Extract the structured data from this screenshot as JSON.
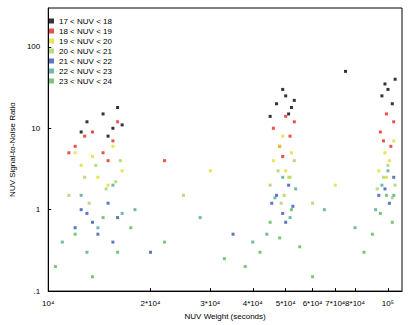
{
  "chart_data": {
    "type": "scatter",
    "x_label": "NUV Weight (seconds)",
    "y_label": "NUV Signal-to-Noise Ratio",
    "log": true,
    "grid": false,
    "legend": "upper left",
    "marker": "square",
    "xlim": [
      10000,
      110000
    ],
    "xticks": [
      {
        "value": 10000,
        "label": "10⁴"
      },
      {
        "value": 20000,
        "label": "2*10⁴"
      },
      {
        "value": 30000,
        "label": "3*10⁴"
      },
      {
        "value": 40000,
        "label": "4*10⁴"
      },
      {
        "value": 50000,
        "label": "5*10⁴"
      },
      {
        "value": 60000,
        "label": "6*10⁴"
      },
      {
        "value": 70000,
        "label": "7*10⁴"
      },
      {
        "value": 80000,
        "label": "8*10⁴"
      },
      {
        "value": 100000,
        "label": "10⁵"
      }
    ],
    "ylim": [
      0.1,
      300
    ],
    "yticks": [
      {
        "value": 0.1,
        "label": ".1"
      },
      1,
      10,
      100
    ],
    "series": [
      {
        "name": "17 < NUV < 18",
        "color": "#000000",
        "x": [
          13000,
          14500,
          15500,
          16000,
          15000,
          16500,
          12500,
          47000,
          50000,
          52000,
          49000,
          51000,
          45000,
          53000,
          96000,
          100000,
          103000,
          98000,
          105000,
          75000
        ],
        "values": [
          12,
          15,
          10,
          18,
          8,
          11,
          9,
          20,
          25,
          18,
          30,
          15,
          14,
          22,
          25,
          30,
          20,
          35,
          40,
          50
        ]
      },
      {
        "name": "18 < NUV < 19",
        "color": "#e8231e",
        "x": [
          12000,
          13500,
          14500,
          15500,
          16000,
          15000,
          12800,
          11500,
          46000,
          48000,
          50000,
          51500,
          53000,
          49000,
          95000,
          99000,
          102000,
          104000,
          97000,
          22000
        ],
        "values": [
          6,
          9,
          5,
          7,
          12,
          4,
          8,
          5,
          10,
          6,
          14,
          8,
          12,
          4.5,
          9,
          15,
          6,
          12,
          7,
          4
        ]
      },
      {
        "name": "19 < NUV < 20",
        "color": "#e3dc2a",
        "x": [
          12500,
          13500,
          14000,
          15500,
          16500,
          15000,
          12000,
          30000,
          46000,
          48000,
          50000,
          52000,
          49000,
          51000,
          94000,
          98000,
          101000,
          104000,
          99000,
          70000
        ],
        "values": [
          3.5,
          4.5,
          2.5,
          6,
          3,
          2,
          5,
          3,
          4,
          6,
          3,
          5,
          8,
          2.5,
          3,
          5,
          4,
          7,
          2.5,
          2
        ]
      },
      {
        "name": "20 < NUV < 21",
        "color": "#a6d35a",
        "x": [
          11500,
          12800,
          13800,
          14800,
          15800,
          16300,
          13200,
          25000,
          45000,
          47500,
          49500,
          51500,
          53000,
          48500,
          93000,
          97000,
          100000,
          103000,
          105000,
          60000
        ],
        "values": [
          1.5,
          2.5,
          3.5,
          1.8,
          2.2,
          4,
          1.2,
          1.5,
          2,
          3,
          1.5,
          2.5,
          4,
          1.2,
          1.8,
          2.5,
          3.5,
          1.4,
          2,
          1.2
        ]
      },
      {
        "name": "21 < NUV < 22",
        "color": "#3354b5",
        "x": [
          12000,
          13000,
          14000,
          15000,
          16000,
          15500,
          13500,
          12500,
          45500,
          47000,
          49000,
          51000,
          52500,
          50000,
          94000,
          98000,
          101000,
          104000,
          20000,
          35000
        ],
        "values": [
          0.6,
          0.9,
          0.5,
          1.2,
          0.8,
          0.4,
          0.7,
          1.0,
          1.2,
          1.5,
          0.9,
          2,
          1.1,
          0.7,
          1.5,
          1.8,
          1.2,
          2.5,
          0.3,
          0.5
        ]
      },
      {
        "name": "22 < NUV < 23",
        "color": "#4aa8a0",
        "x": [
          11000,
          12500,
          14000,
          15500,
          16500,
          13000,
          18000,
          28000,
          44000,
          46500,
          49000,
          51500,
          53500,
          40000,
          92000,
          96000,
          100000,
          104000,
          80000,
          65000
        ],
        "values": [
          0.4,
          1.5,
          0.6,
          2,
          0.9,
          0.3,
          1,
          0.8,
          0.5,
          1.4,
          2.5,
          0.8,
          1.8,
          0.4,
          1,
          2,
          3,
          1.5,
          0.6,
          1
        ]
      },
      {
        "name": "23 < NUV < 24",
        "color": "#55b955",
        "x": [
          10500,
          12000,
          13500,
          14500,
          16000,
          17500,
          22000,
          33000,
          42000,
          45000,
          48000,
          52000,
          55000,
          38000,
          90000,
          95000,
          99000,
          103000,
          85000,
          60000
        ],
        "values": [
          0.2,
          0.5,
          0.15,
          0.8,
          0.3,
          0.6,
          0.4,
          0.25,
          0.3,
          0.7,
          0.45,
          1,
          0.35,
          0.2,
          0.5,
          0.9,
          1.5,
          0.7,
          0.3,
          0.15
        ]
      }
    ]
  }
}
